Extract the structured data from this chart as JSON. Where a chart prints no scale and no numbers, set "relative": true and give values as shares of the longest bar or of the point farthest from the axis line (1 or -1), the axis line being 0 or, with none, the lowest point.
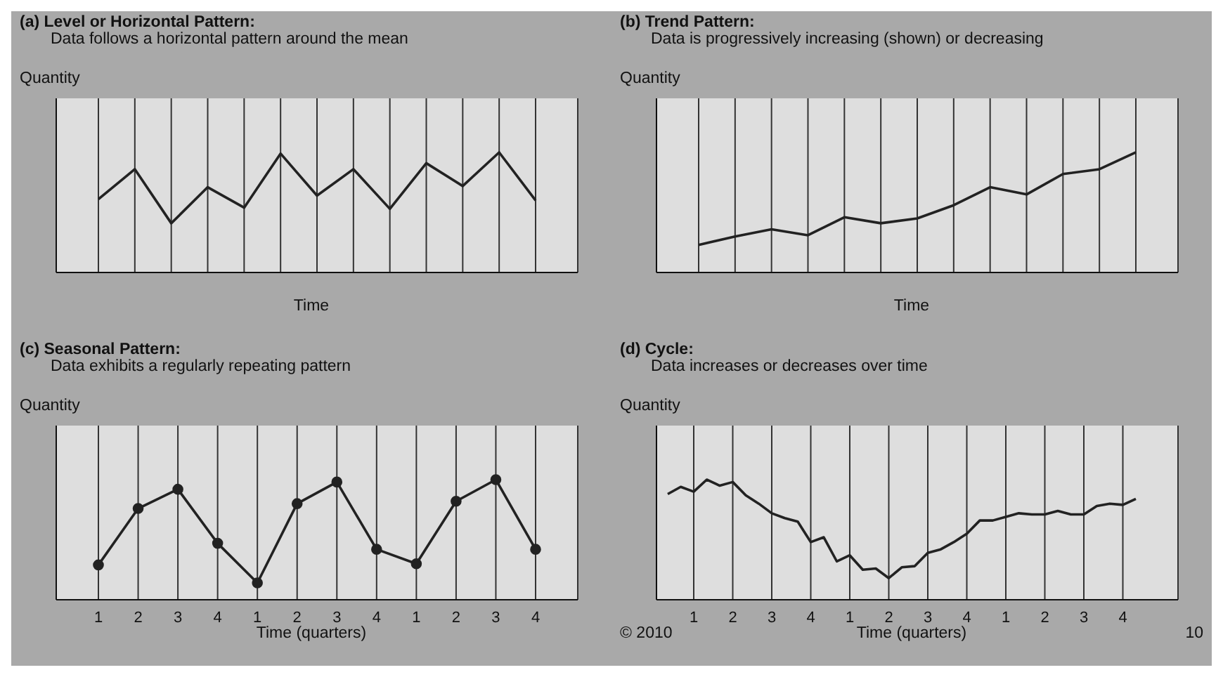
{
  "chart_data": [
    {
      "type": "line",
      "title": "(a) Level or Horizontal Pattern:",
      "subtitle": "Data follows a horizontal pattern around the mean",
      "ylabel": "Quantity",
      "xlabel": "Time",
      "relative": true,
      "grid": "x",
      "marker": "none",
      "categories": [
        null,
        null,
        null,
        null,
        null,
        null,
        null,
        null,
        null,
        null,
        null,
        null,
        null
      ],
      "series": [
        {
          "color": "#222222",
          "values": [
            0.61,
            0.86,
            0.41,
            0.71,
            0.54,
            0.99,
            0.64,
            0.86,
            0.53,
            0.91,
            0.72,
            1,
            0.6
          ]
        }
      ]
    },
    {
      "type": "line",
      "title": "(b) Trend Pattern:",
      "subtitle": "Data is progressively increasing (shown) or decreasing",
      "ylabel": "Quantity",
      "xlabel": "Time",
      "relative": true,
      "grid": "x",
      "marker": "none",
      "categories": [
        null,
        null,
        null,
        null,
        null,
        null,
        null,
        null,
        null,
        null,
        null,
        null,
        null
      ],
      "series": [
        {
          "color": "#222222",
          "values": [
            0.23,
            0.3,
            0.36,
            0.31,
            0.46,
            0.41,
            0.45,
            0.56,
            0.71,
            0.65,
            0.82,
            0.86,
            1
          ]
        }
      ]
    },
    {
      "type": "line",
      "title": "(c) Seasonal Pattern:",
      "subtitle": "Data exhibits a regularly repeating pattern",
      "ylabel": "Quantity",
      "xlabel": "Time (quarters)",
      "relative": true,
      "grid": "x",
      "marker": "circle",
      "categories": [
        "1",
        "2",
        "3",
        "4",
        "1",
        "2",
        "3",
        "4",
        "1",
        "2",
        "3",
        "4"
      ],
      "series": [
        {
          "color": "#222222",
          "values": [
            0.29,
            0.76,
            0.92,
            0.47,
            0.14,
            0.8,
            0.98,
            0.42,
            0.3,
            0.82,
            1,
            0.42
          ]
        }
      ]
    },
    {
      "type": "line",
      "title": "(d) Cycle:",
      "subtitle": "Data increases or decreases over time",
      "ylabel": "Quantity",
      "xlabel": "Time (quarters)",
      "relative": true,
      "grid": "x",
      "marker": "none",
      "annotations": [
        "© 2010",
        "10"
      ],
      "categories": [
        null,
        null,
        "1",
        null,
        null,
        "2",
        null,
        null,
        "3",
        null,
        null,
        "4",
        null,
        null,
        "1",
        null,
        null,
        "2",
        null,
        null,
        "3",
        null,
        null,
        "4",
        null,
        null,
        "1",
        null,
        null,
        "2",
        null,
        null,
        "3",
        null,
        null,
        "4",
        null
      ],
      "series": [
        {
          "color": "#222222",
          "values": [
            0.88,
            0.94,
            0.9,
            1,
            0.95,
            0.98,
            0.87,
            0.8,
            0.72,
            0.68,
            0.65,
            0.48,
            0.52,
            0.32,
            0.37,
            0.25,
            0.26,
            0.18,
            0.27,
            0.28,
            0.39,
            0.42,
            0.48,
            0.55,
            0.66,
            0.66,
            0.69,
            0.72,
            0.71,
            0.71,
            0.74,
            0.71,
            0.71,
            0.78,
            0.8,
            0.79,
            0.84
          ]
        }
      ]
    }
  ]
}
